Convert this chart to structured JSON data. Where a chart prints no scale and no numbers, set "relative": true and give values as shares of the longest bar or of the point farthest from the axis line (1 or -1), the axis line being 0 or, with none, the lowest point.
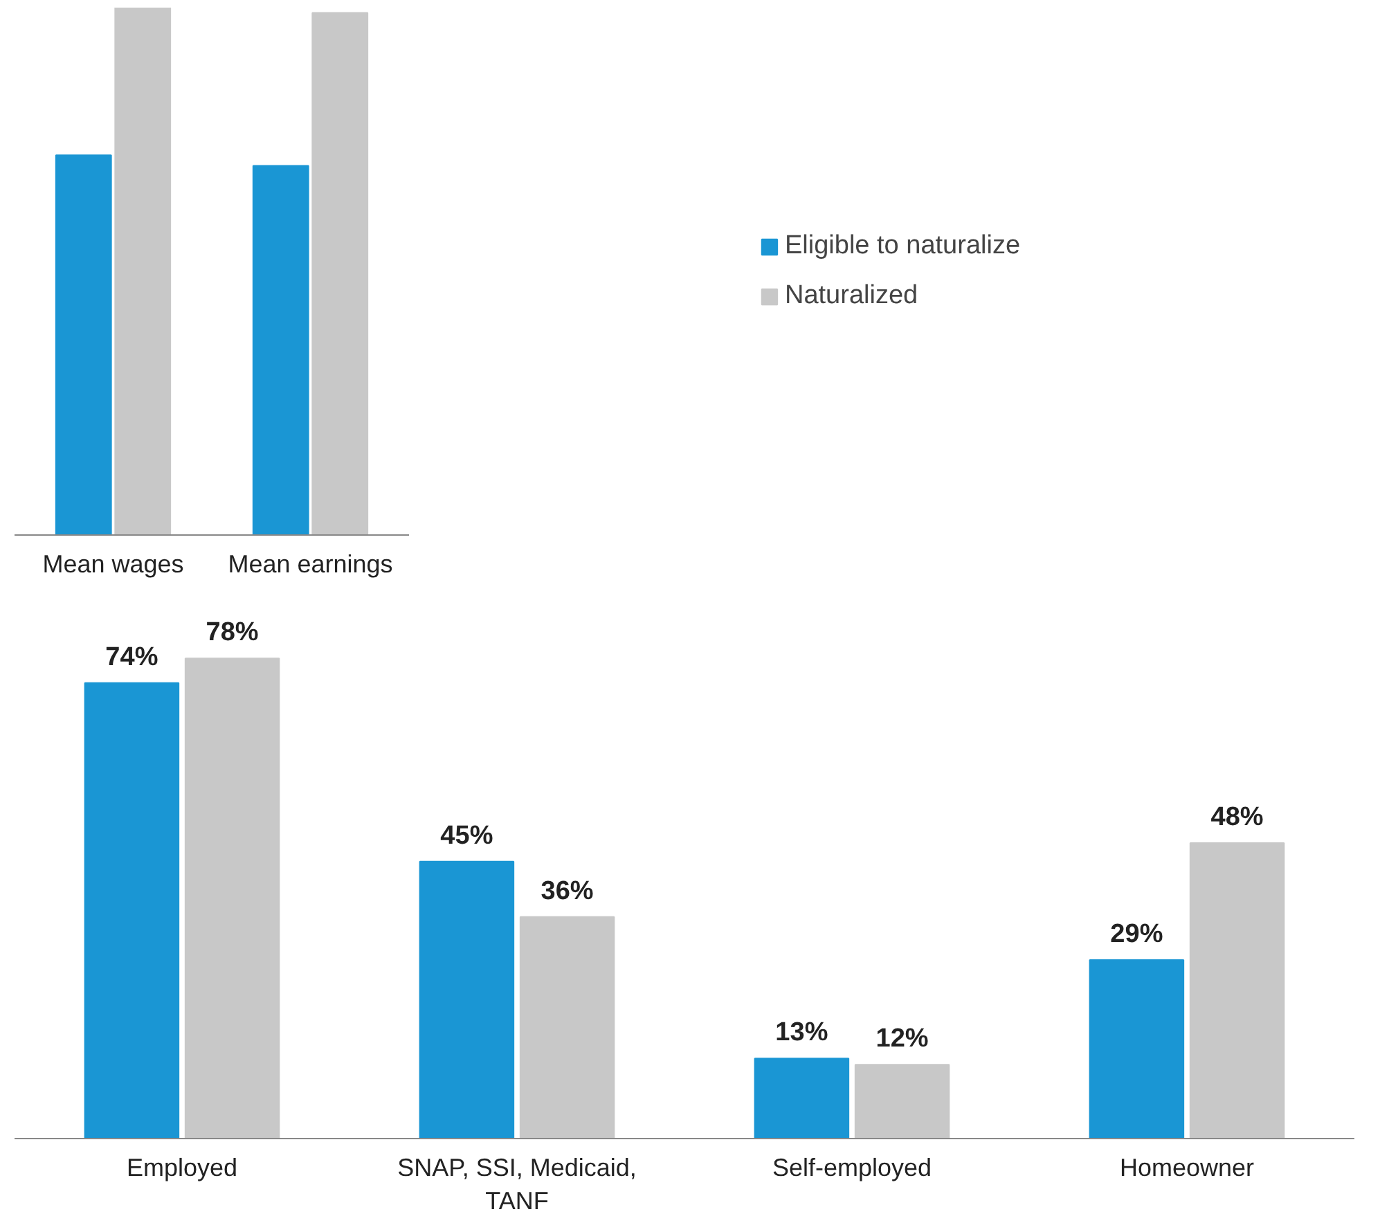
{
  "chart_data": [
    {
      "type": "bar",
      "relative": true,
      "categories": [
        "Mean wages",
        "Mean earnings"
      ],
      "legend": "right",
      "series": [
        {
          "name": "Eligible to naturalize",
          "color": "#1a96d4",
          "values": [
            0.72,
            0.7
          ]
        },
        {
          "name": "Naturalized",
          "color": "#c8c8c8",
          "values": [
            1,
            0.99
          ]
        }
      ]
    },
    {
      "type": "bar",
      "categories": [
        "Employed",
        "SNAP, SSI, Medicaid, TANF",
        "Self-employed",
        "Homeowner"
      ],
      "series": [
        {
          "color": "#1a96d4",
          "values": [
            74,
            45,
            13,
            29
          ],
          "value_labels": [
            "74%",
            "45%",
            "13%",
            "29%"
          ]
        },
        {
          "color": "#c8c8c8",
          "values": [
            78,
            36,
            12,
            48
          ],
          "value_labels": [
            "78%",
            "36%",
            "12%",
            "48%"
          ]
        }
      ]
    }
  ]
}
